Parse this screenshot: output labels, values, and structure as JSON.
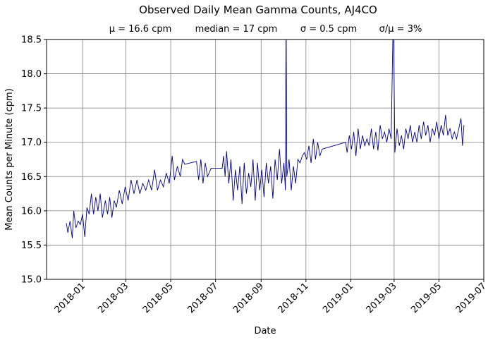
{
  "chart_data": {
    "type": "line",
    "title": "Observed Daily Mean Gamma Counts, AJ4CO",
    "subtitle": [
      "μ = 16.6 cpm",
      "median = 17 cpm",
      "σ = 0.5 cpm",
      "σ/μ = 3%"
    ],
    "xlabel": "Date",
    "ylabel": "Mean Counts per Minute (cpm)",
    "xlim": [
      "2017-11-13",
      "2019-07-01"
    ],
    "ylim": [
      15.0,
      18.5
    ],
    "xticks": [
      "2018-01",
      "2018-03",
      "2018-05",
      "2018-07",
      "2018-09",
      "2018-11",
      "2019-01",
      "2019-03",
      "2019-05",
      "2019-07"
    ],
    "yticks": [
      "15.0",
      "15.5",
      "16.0",
      "16.5",
      "17.0",
      "17.5",
      "18.0",
      "18.5"
    ],
    "grid": true,
    "line_color": "#000080",
    "series": [
      {
        "x": [
          "2017-12-10",
          "2017-12-12",
          "2017-12-15",
          "2017-12-18",
          "2017-12-20",
          "2017-12-23",
          "2017-12-26",
          "2017-12-29",
          "2018-01-01",
          "2018-01-04",
          "2018-01-07",
          "2018-01-10",
          "2018-01-13",
          "2018-01-16",
          "2018-01-19",
          "2018-01-22",
          "2018-01-25",
          "2018-01-28",
          "2018-02-01",
          "2018-02-04",
          "2018-02-07",
          "2018-02-10",
          "2018-02-13",
          "2018-02-16",
          "2018-02-20",
          "2018-02-24",
          "2018-02-28",
          "2018-03-04",
          "2018-03-08",
          "2018-03-12",
          "2018-03-16",
          "2018-03-20",
          "2018-03-24",
          "2018-03-28",
          "2018-04-01",
          "2018-04-05",
          "2018-04-09",
          "2018-04-13",
          "2018-04-17",
          "2018-04-21",
          "2018-04-25",
          "2018-04-29",
          "2018-05-03",
          "2018-05-06",
          "2018-05-10",
          "2018-05-14",
          "2018-05-17",
          "2018-05-20",
          "2018-06-05",
          "2018-06-08",
          "2018-06-11",
          "2018-06-14",
          "2018-06-17",
          "2018-06-20",
          "2018-06-25",
          "2018-07-10",
          "2018-07-12",
          "2018-07-14",
          "2018-07-16",
          "2018-07-19",
          "2018-07-22",
          "2018-07-25",
          "2018-07-28",
          "2018-07-31",
          "2018-08-03",
          "2018-08-06",
          "2018-08-09",
          "2018-08-12",
          "2018-08-15",
          "2018-08-18",
          "2018-08-21",
          "2018-08-24",
          "2018-08-27",
          "2018-08-30",
          "2018-09-02",
          "2018-09-05",
          "2018-09-08",
          "2018-09-11",
          "2018-09-14",
          "2018-09-17",
          "2018-09-20",
          "2018-09-23",
          "2018-09-26",
          "2018-09-29",
          "2018-10-02",
          "2018-10-04",
          "2018-10-05",
          "2018-10-06",
          "2018-10-09",
          "2018-10-12",
          "2018-10-15",
          "2018-10-18",
          "2018-10-21",
          "2018-10-24",
          "2018-10-27",
          "2018-10-30",
          "2018-11-02",
          "2018-11-05",
          "2018-11-08",
          "2018-11-11",
          "2018-11-14",
          "2018-11-17",
          "2018-11-20",
          "2018-11-23",
          "2018-12-25",
          "2018-12-27",
          "2018-12-30",
          "2019-01-02",
          "2019-01-05",
          "2019-01-08",
          "2019-01-11",
          "2019-01-14",
          "2019-01-17",
          "2019-01-20",
          "2019-01-23",
          "2019-01-26",
          "2019-01-29",
          "2019-02-01",
          "2019-02-04",
          "2019-02-07",
          "2019-02-10",
          "2019-02-13",
          "2019-02-16",
          "2019-02-19",
          "2019-02-22",
          "2019-02-25",
          "2019-02-28",
          "2019-03-02",
          "2019-03-05",
          "2019-03-08",
          "2019-03-11",
          "2019-03-14",
          "2019-03-17",
          "2019-03-20",
          "2019-03-23",
          "2019-03-26",
          "2019-03-29",
          "2019-04-01",
          "2019-04-04",
          "2019-04-07",
          "2019-04-10",
          "2019-04-13",
          "2019-04-16",
          "2019-04-19",
          "2019-04-22",
          "2019-04-25",
          "2019-04-28",
          "2019-05-01",
          "2019-05-04",
          "2019-05-07",
          "2019-05-10",
          "2019-05-13",
          "2019-05-16",
          "2019-05-19",
          "2019-05-22",
          "2019-05-25",
          "2019-05-28",
          "2019-05-31",
          "2019-06-02",
          "2019-06-04"
        ],
        "y": [
          15.82,
          15.68,
          15.85,
          15.6,
          16.0,
          15.75,
          15.85,
          15.8,
          15.95,
          15.62,
          16.05,
          15.95,
          16.25,
          15.95,
          16.2,
          16.0,
          16.25,
          15.9,
          16.15,
          15.95,
          16.2,
          15.9,
          16.15,
          16.05,
          16.3,
          16.1,
          16.35,
          16.15,
          16.45,
          16.25,
          16.45,
          16.25,
          16.4,
          16.3,
          16.45,
          16.3,
          16.6,
          16.3,
          16.45,
          16.35,
          16.55,
          16.4,
          16.8,
          16.45,
          16.65,
          16.5,
          16.75,
          16.68,
          16.72,
          16.45,
          16.75,
          16.4,
          16.7,
          16.5,
          16.62,
          16.62,
          16.8,
          16.5,
          16.87,
          16.4,
          16.75,
          16.15,
          16.6,
          16.3,
          16.65,
          16.1,
          16.7,
          16.25,
          16.55,
          16.35,
          16.75,
          16.15,
          16.7,
          16.3,
          16.6,
          16.2,
          16.7,
          16.4,
          16.65,
          16.18,
          16.75,
          16.45,
          16.9,
          16.4,
          16.7,
          16.3,
          19.0,
          16.5,
          16.75,
          16.3,
          16.65,
          16.4,
          16.75,
          16.7,
          16.8,
          16.85,
          16.75,
          16.95,
          16.7,
          17.05,
          16.75,
          17.0,
          16.8,
          16.9,
          17.0,
          16.85,
          17.1,
          16.9,
          17.15,
          16.8,
          17.2,
          16.9,
          17.1,
          16.95,
          17.05,
          16.95,
          17.2,
          16.9,
          17.15,
          16.88,
          17.25,
          17.05,
          17.15,
          17.0,
          17.2,
          17.05,
          19.0,
          16.85,
          17.2,
          16.95,
          17.1,
          16.9,
          17.2,
          17.05,
          17.25,
          17.0,
          17.15,
          17.0,
          17.25,
          17.05,
          17.3,
          17.1,
          17.25,
          17.0,
          17.2,
          17.1,
          17.3,
          17.05,
          17.25,
          17.1,
          17.4,
          17.1,
          17.2,
          17.05,
          17.15,
          17.05,
          17.2,
          17.35,
          16.95,
          17.25
        ]
      }
    ]
  }
}
